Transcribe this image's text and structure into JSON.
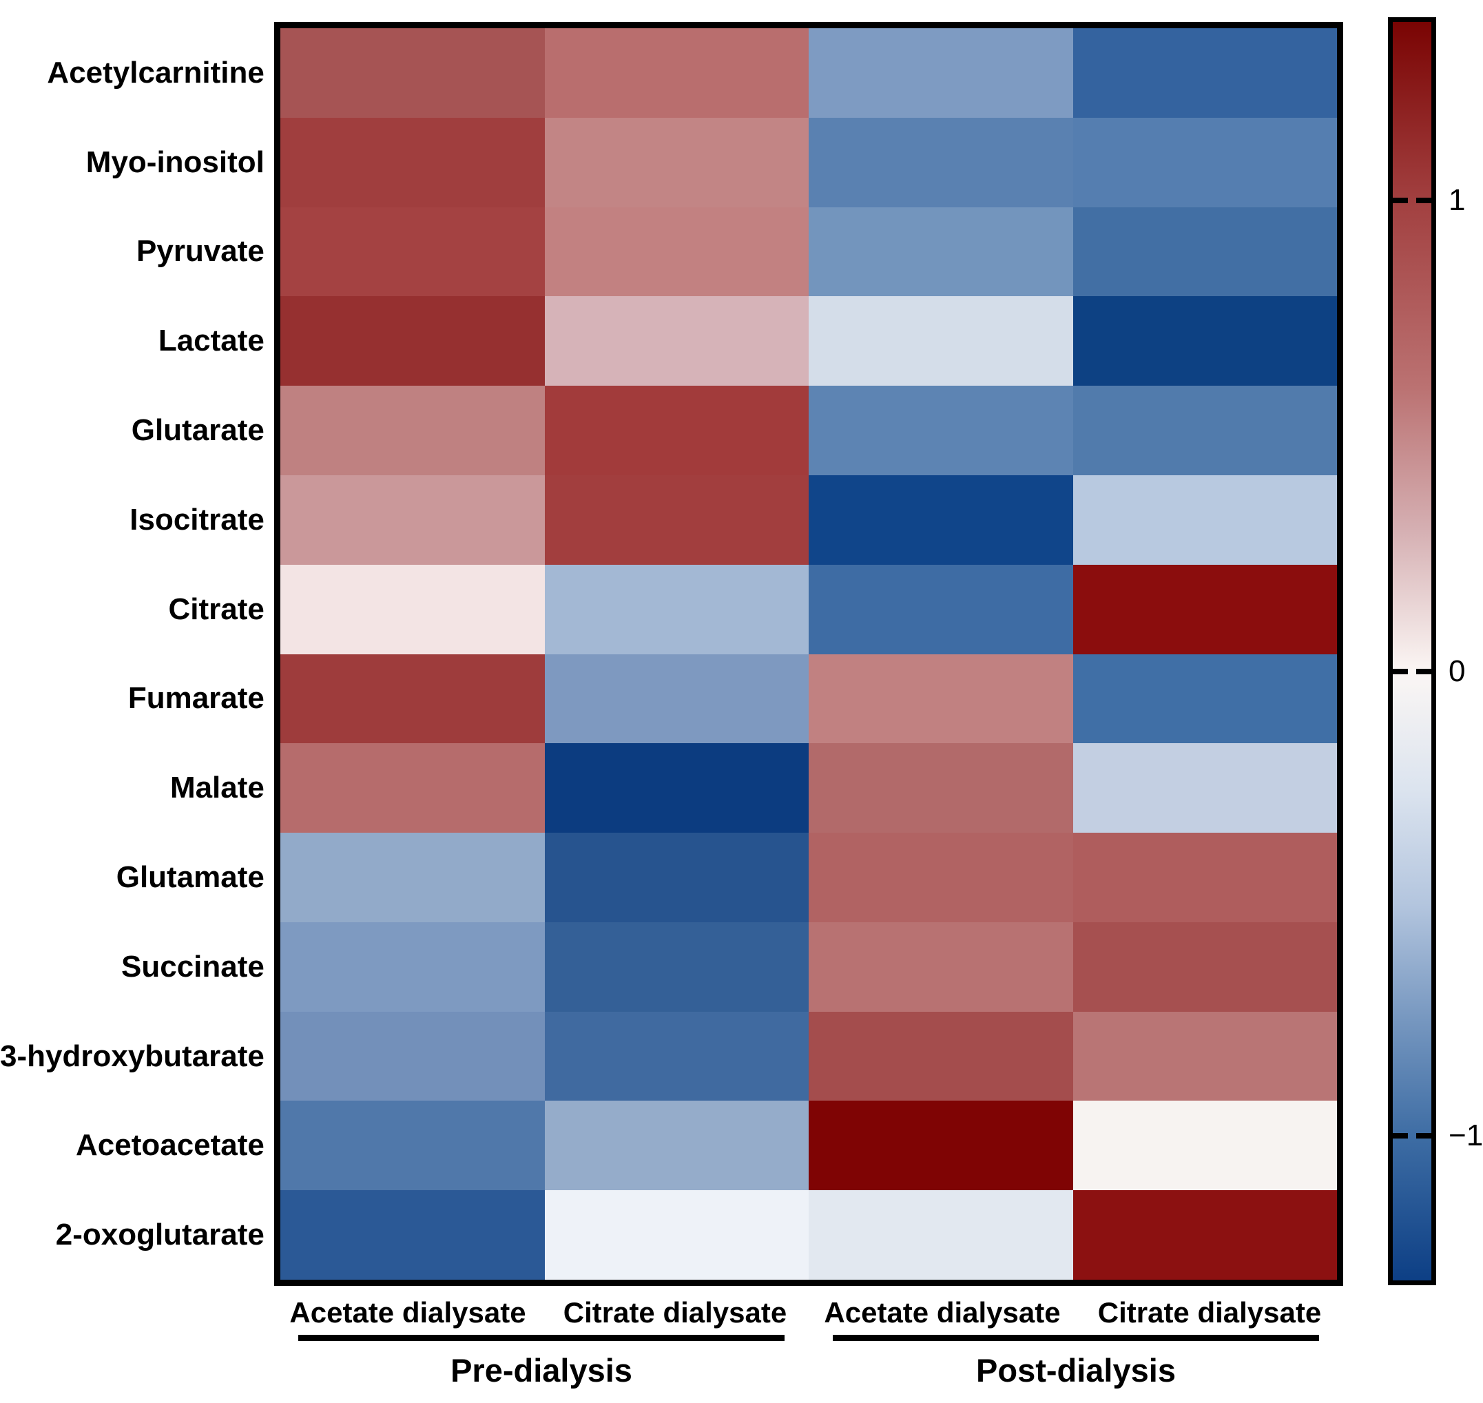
{
  "chart_data": {
    "type": "heatmap",
    "title": "",
    "rows": [
      "Acetylcarnitine",
      "Myo-inositol",
      "Pyruvate",
      "Lactate",
      "Glutarate",
      "Isocitrate",
      "Citrate",
      "Fumarate",
      "Malate",
      "Glutamate",
      "Succinate",
      "3-hydroxybutarate",
      "Acetoacetate",
      "2-oxoglutarate"
    ],
    "columns": [
      "Acetate dialysate",
      "Citrate dialysate",
      "Acetate dialysate",
      "Citrate dialysate"
    ],
    "column_groups": [
      {
        "label": "Pre-dialysis",
        "columns": [
          0,
          1
        ]
      },
      {
        "label": "Post-dialysis",
        "columns": [
          2,
          3
        ]
      }
    ],
    "values": [
      [
        0.95,
        0.65,
        -0.65,
        -1.05
      ],
      [
        1.1,
        0.5,
        -0.82,
        -0.85
      ],
      [
        1.05,
        0.52,
        -0.7,
        -0.98
      ],
      [
        1.2,
        0.3,
        -0.2,
        -1.25
      ],
      [
        0.55,
        1.05,
        -0.8,
        -0.88
      ],
      [
        0.42,
        1.03,
        -1.2,
        -0.45
      ],
      [
        0.08,
        -0.5,
        -0.98,
        1.35
      ],
      [
        1.05,
        -0.65,
        0.55,
        -0.98
      ],
      [
        0.7,
        -1.25,
        0.65,
        -0.35
      ],
      [
        -0.6,
        -1.15,
        0.7,
        0.75
      ],
      [
        -0.65,
        -1.05,
        0.6,
        0.85
      ],
      [
        -0.75,
        -0.95,
        0.85,
        0.6
      ],
      [
        -0.9,
        -0.52,
        1.38,
        0.05
      ],
      [
        -1.1,
        0.03,
        -0.15,
        1.3
      ]
    ],
    "cell_colors": [
      [
        "#a65454",
        "#b96e6e",
        "#7e9bc2",
        "#34639f"
      ],
      [
        "#a03e3e",
        "#c28585",
        "#5a81b1",
        "#557eb0"
      ],
      [
        "#a44242",
        "#c28181",
        "#7395bd",
        "#426fa4"
      ],
      [
        "#963030",
        "#d6b3b8",
        "#d4dde9",
        "#0d4183"
      ],
      [
        "#bf8181",
        "#a23b3b",
        "#5d84b3",
        "#517bac"
      ],
      [
        "#ca989a",
        "#a23e3e",
        "#10458a",
        "#b8c9e0"
      ],
      [
        "#f3e4e4",
        "#a3b8d4",
        "#3e6ca4",
        "#8b0d0d"
      ],
      [
        "#9e3c3c",
        "#7e99c0",
        "#c18181",
        "#406fa6"
      ],
      [
        "#b66c6c",
        "#0c3c80",
        "#b26a6a",
        "#c3cfe2"
      ],
      [
        "#92aac9",
        "#27548f",
        "#b16363",
        "#af5d5d"
      ],
      [
        "#7e9ac1",
        "#346097",
        "#b87272",
        "#a65050"
      ],
      [
        "#7390ba",
        "#406aa0",
        "#a44d4d",
        "#b97575"
      ],
      [
        "#5078aa",
        "#95acca",
        "#7f0404",
        "#f7f3f1"
      ],
      [
        "#2b5996",
        "#eef2f8",
        "#e2e8f0",
        "#8c1111"
      ]
    ],
    "colorbar": {
      "orientation": "vertical",
      "value_top": 1.39,
      "value_bottom": -1.3,
      "ticks": [
        {
          "label": "1",
          "value": 1,
          "pos": 0.142
        },
        {
          "label": "0",
          "value": 0,
          "pos": 0.516
        },
        {
          "label": "−1",
          "value": -1,
          "pos": 0.885
        }
      ],
      "gradient_stops": [
        {
          "pos": 0.0,
          "color": "#7a0403"
        },
        {
          "pos": 0.142,
          "color": "#a24040"
        },
        {
          "pos": 0.291,
          "color": "#bb7272"
        },
        {
          "pos": 0.403,
          "color": "#d5afb2"
        },
        {
          "pos": 0.516,
          "color": "#fbf6f4"
        },
        {
          "pos": 0.609,
          "color": "#dce4ef"
        },
        {
          "pos": 0.702,
          "color": "#b3c5de"
        },
        {
          "pos": 0.795,
          "color": "#7596bf"
        },
        {
          "pos": 0.885,
          "color": "#3e6da4"
        },
        {
          "pos": 1.0,
          "color": "#0d3f85"
        }
      ]
    },
    "style": {
      "background": "#ffffff",
      "frame_color": "#000000",
      "label_color": "#000000",
      "underline_color": "#000000"
    },
    "legend_position": "right",
    "grid": false
  }
}
